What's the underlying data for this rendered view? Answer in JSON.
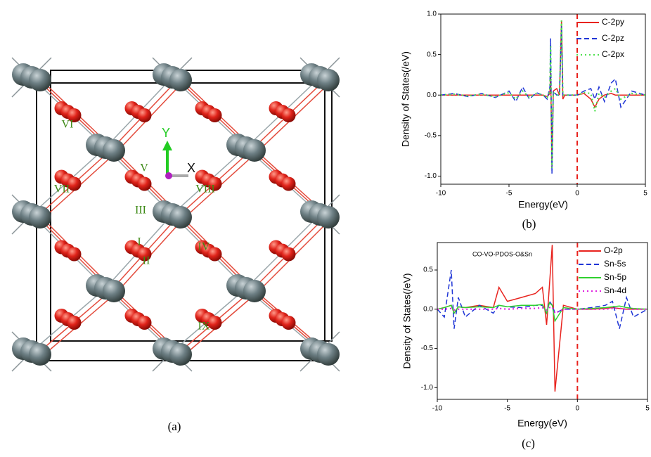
{
  "structure": {
    "labels": [
      "VI",
      "VII",
      "V",
      "III",
      "VIII",
      "I",
      "II",
      "IV",
      "IX"
    ],
    "axes": {
      "y": "Y",
      "x": "X"
    },
    "caption": "(a)"
  },
  "chart_data": [
    {
      "type": "line",
      "caption": "(b)",
      "x_label": "Energy(eV)",
      "y_label": "Density of States(/eV)",
      "x": [
        -10,
        -9,
        -8,
        -7,
        -6,
        -5,
        -4.5,
        -4,
        -3.5,
        -3,
        -2.5,
        -2.2,
        -2.0,
        -1.95,
        -1.85,
        -1.75,
        -1.5,
        -1.3,
        -1.15,
        -1.05,
        -0.9,
        -0.5,
        0,
        0.5,
        1,
        1.3,
        1.6,
        2,
        2.5,
        2.8,
        3.2,
        4,
        5
      ],
      "series": [
        {
          "name": "C-2py",
          "color": "#e8231e",
          "style": "solid",
          "values": [
            0,
            0,
            0,
            0,
            0,
            0,
            0,
            0,
            0,
            0,
            0,
            -0.02,
            0.02,
            0.3,
            -0.9,
            0.05,
            0.08,
            0,
            0.92,
            -0.05,
            0,
            0,
            0,
            0.02,
            -0.05,
            -0.15,
            -0.05,
            0,
            0.02,
            0,
            0,
            0,
            0
          ]
        },
        {
          "name": "C-2pz",
          "color": "#1f35d6",
          "style": "dashed",
          "values": [
            0,
            0.02,
            -0.02,
            0.02,
            -0.03,
            0.05,
            -0.08,
            0.1,
            -0.05,
            0.03,
            0,
            -0.05,
            0.1,
            0.7,
            -0.97,
            0.05,
            0,
            0,
            0.85,
            0,
            0,
            0,
            0,
            0.05,
            0.08,
            -0.05,
            0.1,
            -0.08,
            0.15,
            0.2,
            -0.15,
            0.05,
            0
          ]
        },
        {
          "name": "C-2px",
          "color": "#4de04d",
          "style": "dotted",
          "values": [
            0,
            0.01,
            -0.01,
            0.01,
            -0.02,
            0.03,
            -0.05,
            0.05,
            -0.03,
            0.02,
            0,
            -0.03,
            0.05,
            0.6,
            -0.9,
            0.03,
            0,
            0,
            0.92,
            0,
            0,
            0,
            0,
            0.03,
            0.02,
            -0.2,
            0.02,
            -0.03,
            0.05,
            0.08,
            -0.05,
            0.02,
            0
          ]
        }
      ],
      "xlim": [
        -10,
        5
      ],
      "xticks": [
        -10,
        -5,
        0,
        5
      ],
      "ylim": [
        -1.1,
        1.0
      ],
      "yticks": [
        {
          "value": -1.0,
          "label": "-1.0"
        },
        -0.5,
        {
          "value": 0.0,
          "label": "0.0"
        },
        0.5,
        {
          "value": 1.0,
          "label": "1.0"
        }
      ],
      "vline": 0,
      "vline_color": "#e8231e",
      "legend": "upper right"
    },
    {
      "type": "line",
      "caption": "(c)",
      "x_label": "Energy(eV)",
      "y_label": "Density of States(/eV)",
      "annotation": "CO-VO-PDOS-O&Sn",
      "x": [
        -10,
        -9.5,
        -9,
        -8.8,
        -8.5,
        -8,
        -7,
        -6,
        -5.6,
        -5,
        -4,
        -3,
        -2.5,
        -2.2,
        -2,
        -1.8,
        -1.6,
        -1,
        0,
        1,
        2,
        2.5,
        3,
        3.5,
        4,
        5
      ],
      "series": [
        {
          "name": "O-2p",
          "color": "#e8231e",
          "style": "solid",
          "values": [
            0,
            0.02,
            0.05,
            -0.05,
            0.03,
            0.02,
            0.05,
            0.02,
            0.28,
            0.1,
            0.15,
            0.2,
            0.28,
            -0.2,
            0.3,
            0.82,
            -1.05,
            0.05,
            0,
            0,
            0.01,
            0.02,
            0.01,
            0,
            0,
            0
          ]
        },
        {
          "name": "Sn-5s",
          "color": "#1f35d6",
          "style": "dashed",
          "values": [
            0,
            -0.1,
            0.5,
            -0.25,
            0.15,
            -0.1,
            0.05,
            -0.05,
            0.05,
            0.03,
            0.02,
            0.05,
            0.05,
            -0.05,
            0.1,
            0.05,
            -0.05,
            0,
            0,
            0.02,
            0.05,
            0.1,
            -0.25,
            0.15,
            -0.1,
            0
          ]
        },
        {
          "name": "Sn-5p",
          "color": "#2fd12f",
          "style": "solid",
          "values": [
            0,
            0.02,
            0.05,
            -0.05,
            0.03,
            0.02,
            0.03,
            0.02,
            0.05,
            0.03,
            0.05,
            0.05,
            0.06,
            -0.05,
            0.08,
            0.05,
            -0.15,
            0.02,
            0,
            0.01,
            0.02,
            0.03,
            0.04,
            0.02,
            0.01,
            0
          ]
        },
        {
          "name": "Sn-4d",
          "color": "#e020e0",
          "style": "dotted",
          "values": [
            0,
            0,
            0.01,
            -0.01,
            0,
            0,
            0,
            0,
            0.01,
            0,
            0.01,
            0.01,
            0.02,
            -0.01,
            0.02,
            0.03,
            -0.05,
            0,
            0,
            0,
            0,
            0.01,
            0.01,
            0,
            0,
            0
          ]
        }
      ],
      "xlim": [
        -10,
        5
      ],
      "xticks": [
        -10,
        -5,
        0,
        5
      ],
      "ylim": [
        -1.15,
        0.85
      ],
      "yticks": [
        {
          "value": -1.0,
          "label": "-1.0"
        },
        -0.5,
        {
          "value": 0.0,
          "label": "0.0"
        },
        0.5
      ],
      "vline": 0,
      "vline_color": "#e8231e",
      "legend": "upper right"
    }
  ]
}
